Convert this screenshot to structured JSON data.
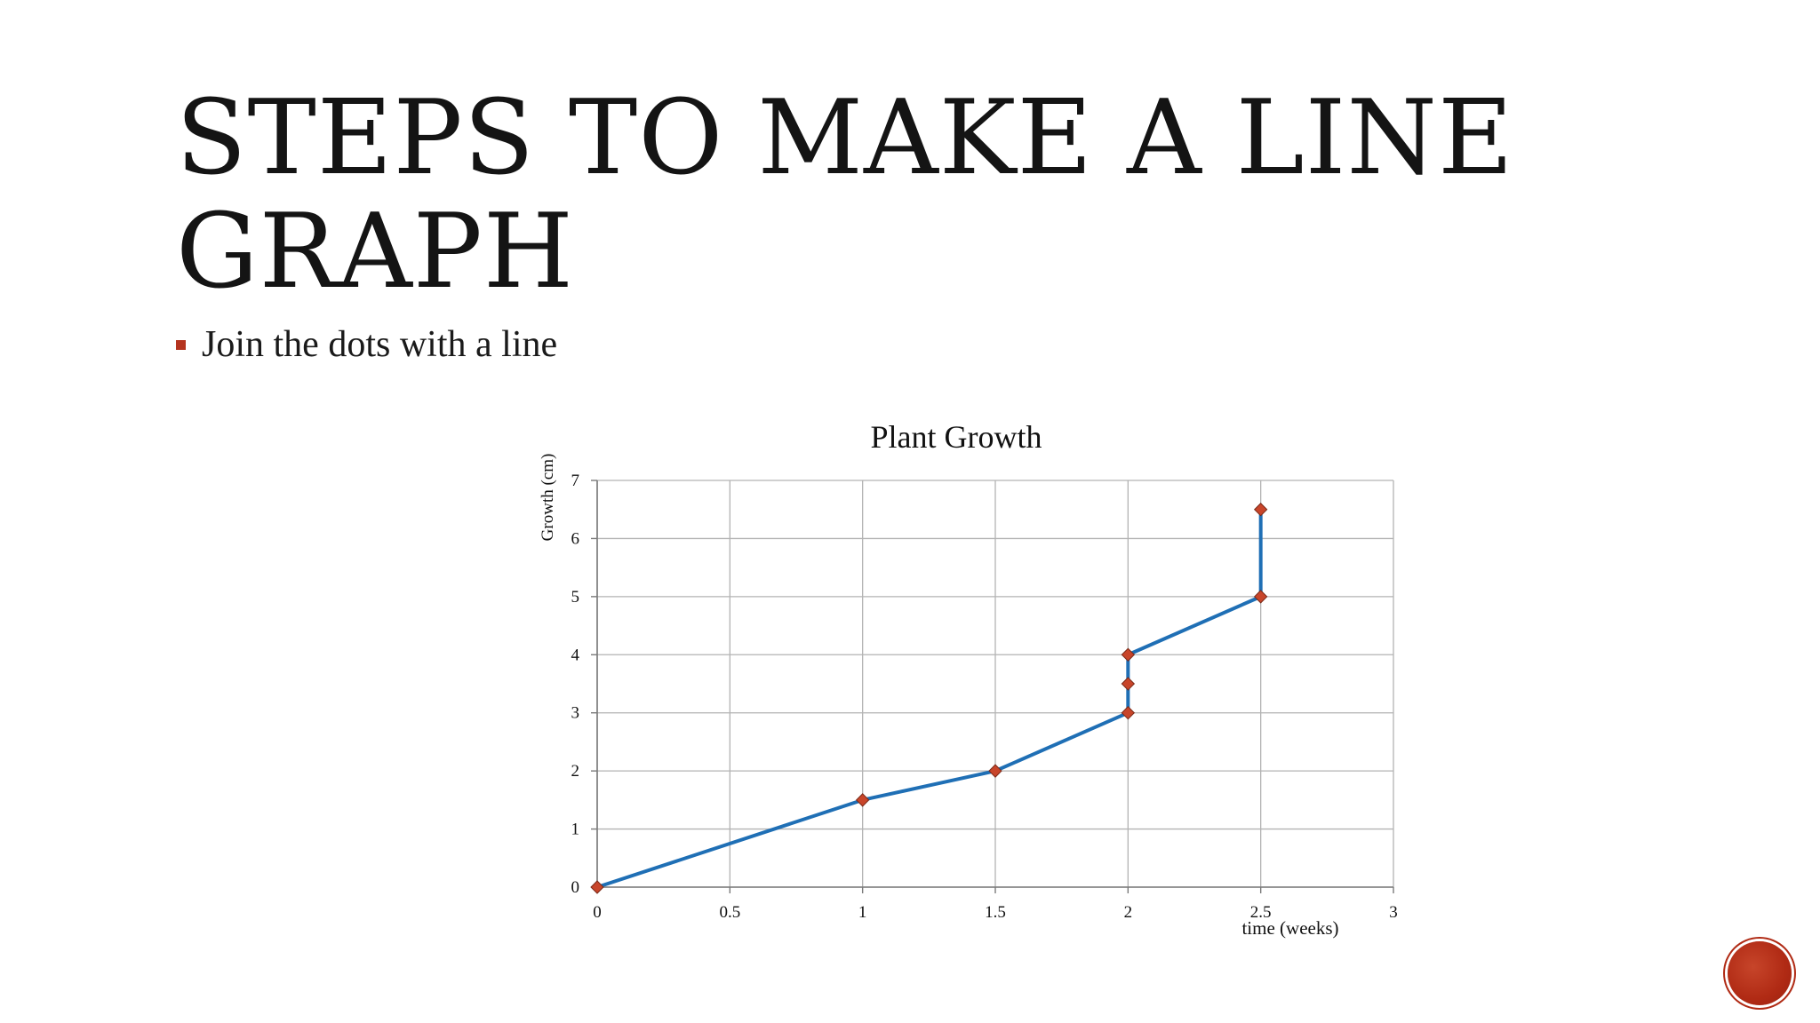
{
  "slide": {
    "title": "Steps to make a line graph",
    "bullets": [
      "Join the dots with a line"
    ]
  },
  "colors": {
    "line": "#1f6fb5",
    "marker": "#c8452a",
    "marker_stroke": "#7a2a18",
    "grid": "#b3b3b3",
    "bullet": "#b5341f"
  },
  "chart_data": {
    "type": "line",
    "title": "Plant Growth",
    "xlabel": "time (weeks)",
    "ylabel": "Growth (cm)",
    "xlim": [
      0,
      3
    ],
    "ylim": [
      0,
      7
    ],
    "xticks": [
      0,
      0.5,
      1,
      1.5,
      2,
      2.5,
      3
    ],
    "yticks": [
      0,
      1,
      2,
      3,
      4,
      5,
      6,
      7
    ],
    "grid": true,
    "legend": "none",
    "series": [
      {
        "x": [
          0,
          1,
          1.5,
          2,
          2,
          2,
          2.5,
          2.5
        ],
        "y": [
          0,
          1.5,
          2,
          3,
          3.5,
          4,
          5,
          6.5
        ]
      }
    ]
  }
}
